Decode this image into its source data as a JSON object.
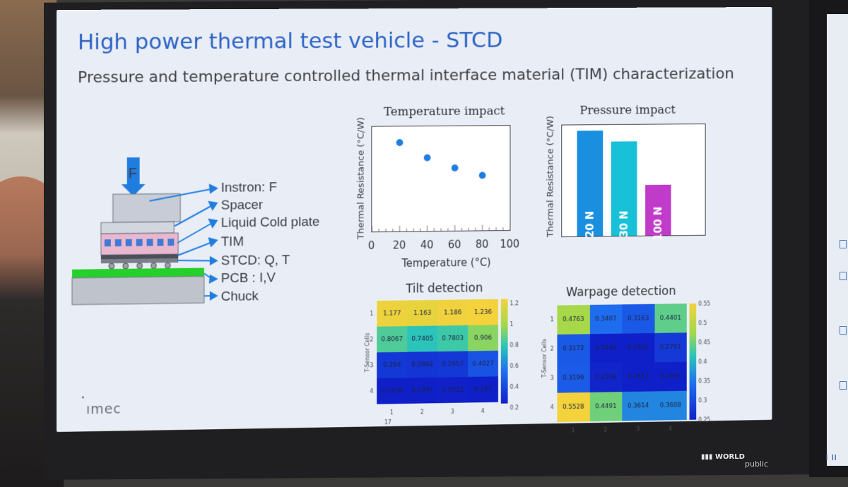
{
  "slide": {
    "title": "High power thermal test vehicle - STCD",
    "subtitle": "Pressure and temperature controlled thermal interface material (TIM) characterization",
    "brand": "ımec"
  },
  "stack": {
    "force_label": "F",
    "labels": [
      "Instron: F",
      "Spacer",
      "Liquid Cold plate",
      "TIM",
      "STCD: Q, T",
      "PCB : I,V",
      "Chuck"
    ]
  },
  "temperature_chart": {
    "title": "Temperature impact",
    "ylabel": "Thermal Resistance (°C/W)",
    "xlabel": "Temperature (°C)",
    "xticks": [
      "0",
      "20",
      "40",
      "60",
      "80",
      "100"
    ]
  },
  "pressure_chart": {
    "title": "Pressure impact",
    "ylabel": "Thermal Resistance (°C/W)"
  },
  "tilt": {
    "title": "Tilt detection",
    "ylabel": "T-Sensor Cells",
    "row_labels": [
      "1",
      "2",
      "3",
      "4"
    ],
    "col_labels": [
      "1",
      "2",
      "3",
      "4"
    ],
    "extra_label": "17",
    "colorbar_ticks": [
      "1.2",
      "1",
      "0.8",
      "0.6",
      "0.4",
      "0.2"
    ]
  },
  "warpage": {
    "title": "Warpage detection",
    "ylabel": "T-Sensor Cells",
    "row_labels": [
      "1",
      "2",
      "3",
      "4"
    ],
    "col_labels": [
      "1",
      "2",
      "3",
      "4"
    ],
    "colorbar_ticks": [
      "0.55",
      "0.5",
      "0.45",
      "0.4",
      "0.35",
      "0.3",
      "0.25"
    ]
  },
  "watermark": {
    "a": "WORLD",
    "b": "public"
  },
  "colors": {
    "title_blue": "#2d63c4",
    "dot_blue": "#1f7de0",
    "bar_20N": "#1a8fe0",
    "bar_30N": "#18c0d8",
    "bar_100N": "#c03bc9"
  },
  "chart_data": [
    {
      "type": "scatter",
      "title": "Temperature impact",
      "xlabel": "Temperature (°C)",
      "ylabel": "Thermal Resistance (°C/W)",
      "xlim": [
        0,
        100
      ],
      "series": [
        {
          "x": [
            20,
            40,
            60,
            80
          ],
          "y": [
            0.94,
            0.88,
            0.84,
            0.81
          ]
        }
      ]
    },
    {
      "type": "bar",
      "title": "Pressure impact",
      "ylabel": "Thermal Resistance (°C/W)",
      "categories": [
        "20 N",
        "30 N",
        "100 N"
      ],
      "values": [
        1.0,
        0.89,
        0.48
      ]
    },
    {
      "type": "heatmap",
      "title": "Tilt detection",
      "ylabel": "T-Sensor Cells",
      "x": [
        "1",
        "2",
        "3",
        "4"
      ],
      "y": [
        "1",
        "2",
        "3",
        "4"
      ],
      "values": [
        [
          "1.177",
          "1.163",
          "1.186",
          "1.236"
        ],
        [
          "0.8067",
          "0.7405",
          "0.7803",
          "0.906"
        ],
        [
          "0.294",
          "0.2802",
          "0.2957",
          "0.4027"
        ],
        [
          "0.1836",
          "0.1997",
          "0.2022",
          "0.197"
        ]
      ],
      "zlim": [
        0.2,
        1.2
      ]
    },
    {
      "type": "heatmap",
      "title": "Warpage detection",
      "ylabel": "T-Sensor Cells",
      "x": [
        "1",
        "2",
        "3",
        "4"
      ],
      "y": [
        "1",
        "2",
        "3",
        "4"
      ],
      "values": [
        [
          "0.4763",
          "0.3407",
          "0.3163",
          "0.4401"
        ],
        [
          "0.3172",
          "0.2446",
          "0.2401",
          "0.2791"
        ],
        [
          "0.3196",
          "0.2556",
          "0.2417",
          "0.2438"
        ],
        [
          "0.5528",
          "0.4491",
          "0.3614",
          "0.3608"
        ]
      ],
      "zlim": [
        0.25,
        0.55
      ]
    }
  ]
}
